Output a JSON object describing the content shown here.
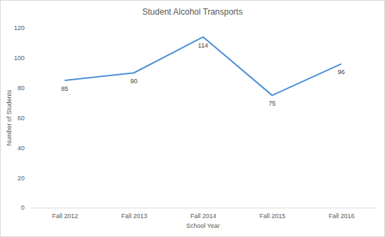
{
  "chart_data": {
    "type": "line",
    "title": "Student Alcohol Transports",
    "x_label": "School Year",
    "y_label": "Number of Students",
    "categories": [
      "Fall 2012",
      "Fall 2013",
      "Fall 2014",
      "Fall 2015",
      "Fall 2016"
    ],
    "values": [
      85,
      90,
      114,
      75,
      96
    ],
    "color": "#4a8fd6",
    "ylim": [
      0,
      120
    ],
    "yticks": [
      0,
      20,
      40,
      60,
      80,
      100,
      120
    ],
    "grid": false,
    "data_labels": true
  }
}
